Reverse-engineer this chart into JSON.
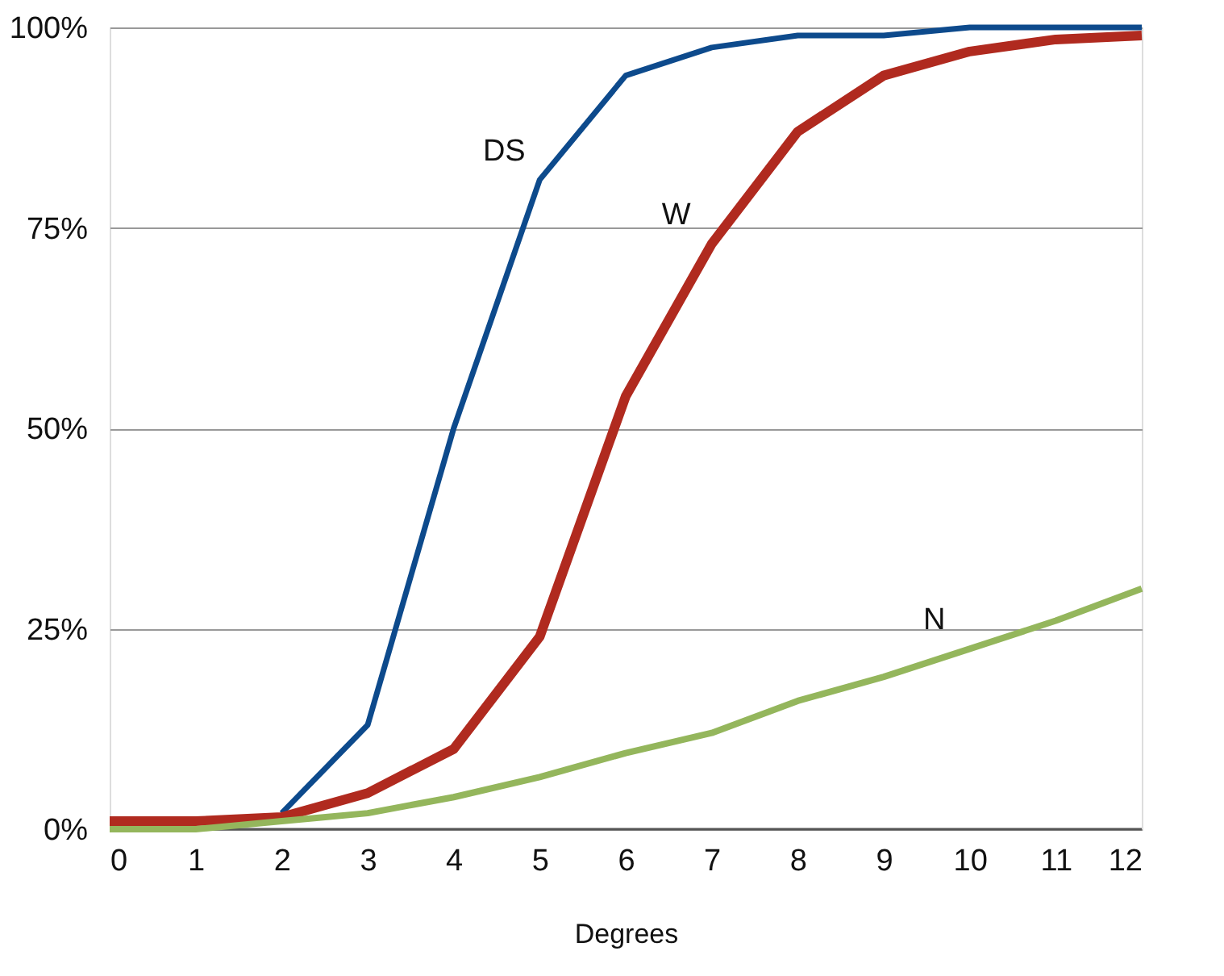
{
  "chart_data": {
    "type": "line",
    "xlabel": "Degrees",
    "x": [
      0,
      1,
      2,
      3,
      4,
      5,
      6,
      7,
      8,
      9,
      10,
      11,
      12
    ],
    "series": [
      {
        "name": "DS",
        "color": "#0d4a8c",
        "values": [
          null,
          null,
          2,
          13,
          50,
          81,
          94,
          97.5,
          99,
          99,
          100,
          100,
          100
        ]
      },
      {
        "name": "W",
        "color": "#b02a1f",
        "values": [
          1,
          1,
          1.5,
          4.5,
          10,
          24,
          54,
          73,
          87,
          94,
          97,
          98.5,
          99
        ]
      },
      {
        "name": "N",
        "color": "#94b65c",
        "values": [
          0,
          0,
          1,
          2,
          4,
          6.5,
          9.5,
          12,
          16,
          19,
          22.5,
          26,
          30
        ]
      }
    ],
    "xlim": [
      0,
      12
    ],
    "xticks": [
      0,
      1,
      2,
      3,
      4,
      5,
      6,
      7,
      8,
      9,
      10,
      11,
      12
    ],
    "ylim": [
      0,
      100
    ],
    "yticks": [
      {
        "value": 0,
        "label": "0%"
      },
      {
        "value": 25,
        "label": "25%"
      },
      {
        "value": 50,
        "label": "50%"
      },
      {
        "value": 75,
        "label": "75%"
      },
      {
        "value": 100,
        "label": "100%"
      }
    ],
    "grid": "y",
    "legend": false,
    "marker": "none",
    "line_style": "solid"
  }
}
